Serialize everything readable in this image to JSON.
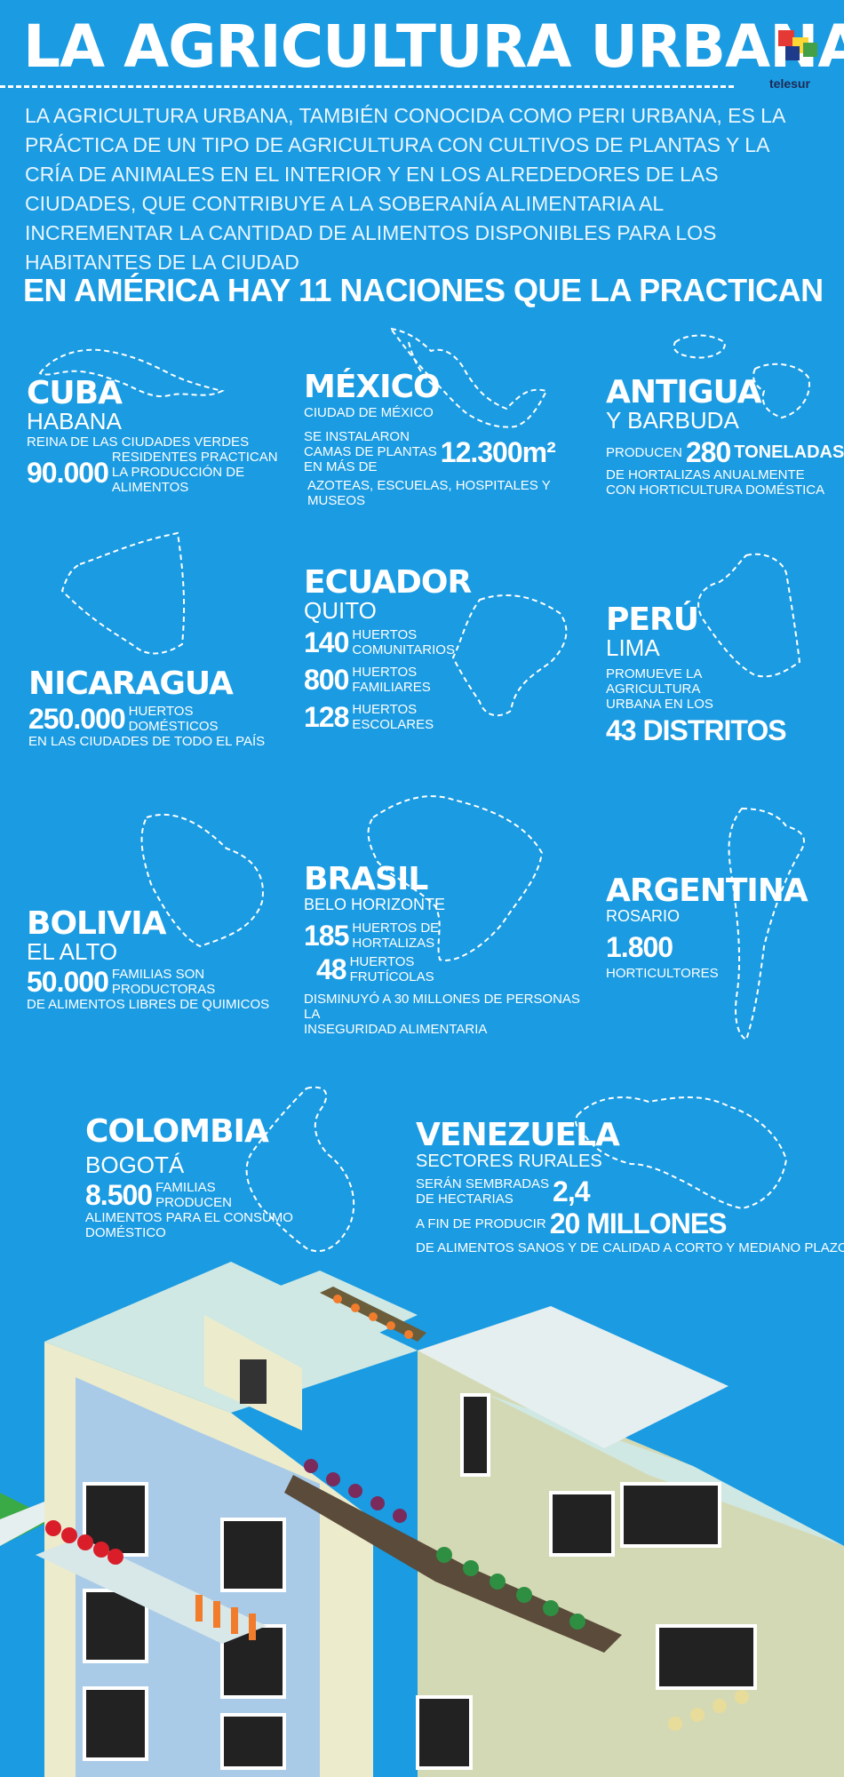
{
  "header": {
    "title": "LA AGRICULTURA URBANA",
    "logo_text": "telesur",
    "intro": "LA AGRICULTURA URBANA, TAMBIÉN CONOCIDA COMO PERI URBANA, ES LA PRÁCTICA DE UN TIPO DE AGRICULTURA CON CULTIVOS DE PLANTAS Y LA CRÍA DE ANIMALES EN EL INTERIOR Y EN LOS ALREDEDORES DE LAS CIUDADES, QUE CONTRIBUYE A LA SOBERANÍA ALIMENTARIA AL INCREMENTAR LA CANTIDAD DE ALIMENTOS DISPONIBLES PARA LOS HABITANTES DE LA CIUDAD",
    "subhead": "EN AMÉRICA HAY 11 NACIONES QUE LA PRACTICAN"
  },
  "colors": {
    "background": "#1a9be2",
    "text": "#ffffff",
    "logo_red": "#e53935",
    "logo_yellow": "#fdd835",
    "logo_green": "#43a047",
    "logo_blue": "#1e3a8a"
  },
  "countries": {
    "cuba": {
      "name": "CUBA",
      "city": "HABANA",
      "line1": "REINA DE LAS CIUDADES VERDES",
      "num": "90.000",
      "text1": "RESIDENTES PRACTICAN",
      "text2": "LA PRODUCCIÓN DE ALIMENTOS"
    },
    "mexico": {
      "name": "MÉXICO",
      "city": "CIUDAD DE MÉXICO",
      "text1": "SE INSTALARON",
      "text2": "CAMAS DE PLANTAS",
      "text3": "EN MÁS DE",
      "num": "12.300m²",
      "text4": "AZOTEAS, ESCUELAS, HOSPITALES Y MUSEOS"
    },
    "antigua": {
      "name": "ANTIGUA",
      "city": "Y BARBUDA",
      "pre": "PRODUCEN",
      "num": "280",
      "unit": "TONELADAS",
      "text1": "DE HORTALIZAS ANUALMENTE",
      "text2": "CON HORTICULTURA DOMÉSTICA"
    },
    "nicaragua": {
      "name": "NICARAGUA",
      "num": "250.000",
      "text1": "HUERTOS",
      "text2": "DOMÉSTICOS",
      "text3": "EN LAS CIUDADES DE TODO EL PAÍS"
    },
    "ecuador": {
      "name": "ECUADOR",
      "city": "QUITO",
      "stats": [
        {
          "num": "140",
          "l1": "HUERTOS",
          "l2": "COMUNITARIOS"
        },
        {
          "num": "800",
          "l1": "HUERTOS",
          "l2": "FAMILIARES"
        },
        {
          "num": "128",
          "l1": "HUERTOS",
          "l2": "ESCOLARES"
        }
      ]
    },
    "peru": {
      "name": "PERÚ",
      "city": "LIMA",
      "text1": "PROMUEVE LA",
      "text2": "AGRICULTURA",
      "text3": "URBANA EN LOS",
      "big": "43 DISTRITOS"
    },
    "bolivia": {
      "name": "BOLIVIA",
      "city": "EL ALTO",
      "num": "50.000",
      "text1": "FAMILIAS SON",
      "text2": "PRODUCTORAS",
      "text3": "DE ALIMENTOS LIBRES DE QUIMICOS"
    },
    "brasil": {
      "name": "BRASIL",
      "city": "BELO HORIZONTE",
      "stats": [
        {
          "num": "185",
          "l1": "HUERTOS DE",
          "l2": "HORTALIZAS"
        },
        {
          "num": "48",
          "l1": "HUERTOS",
          "l2": "FRUTÍCOLAS"
        }
      ],
      "text1": "DISMINUYÓ A 30 MILLONES DE PERSONAS LA",
      "text2": "INSEGURIDAD ALIMENTARIA"
    },
    "argentina": {
      "name": "ARGENTINA",
      "city": "ROSARIO",
      "num": "1.800",
      "text1": "HORTICULTORES"
    },
    "colombia": {
      "name": "COLOMBIA",
      "city": "BOGOTÁ",
      "num": "8.500",
      "text1": "FAMILIAS",
      "text2": "PRODUCEN",
      "text3": "ALIMENTOS PARA EL CONSUMO",
      "text4": "DOMÉSTICO"
    },
    "venezuela": {
      "name": "VENEZUELA",
      "city": "SECTORES RURALES",
      "text1": "SERÁN SEMBRADAS",
      "text2": "DE HECTARIAS",
      "num": "2,4",
      "text3": "A FIN DE PRODUCIR",
      "big": "20 MILLONES",
      "text4": "DE ALIMENTOS SANOS Y DE CALIDAD A CORTO Y MEDIANO PLAZO"
    }
  }
}
